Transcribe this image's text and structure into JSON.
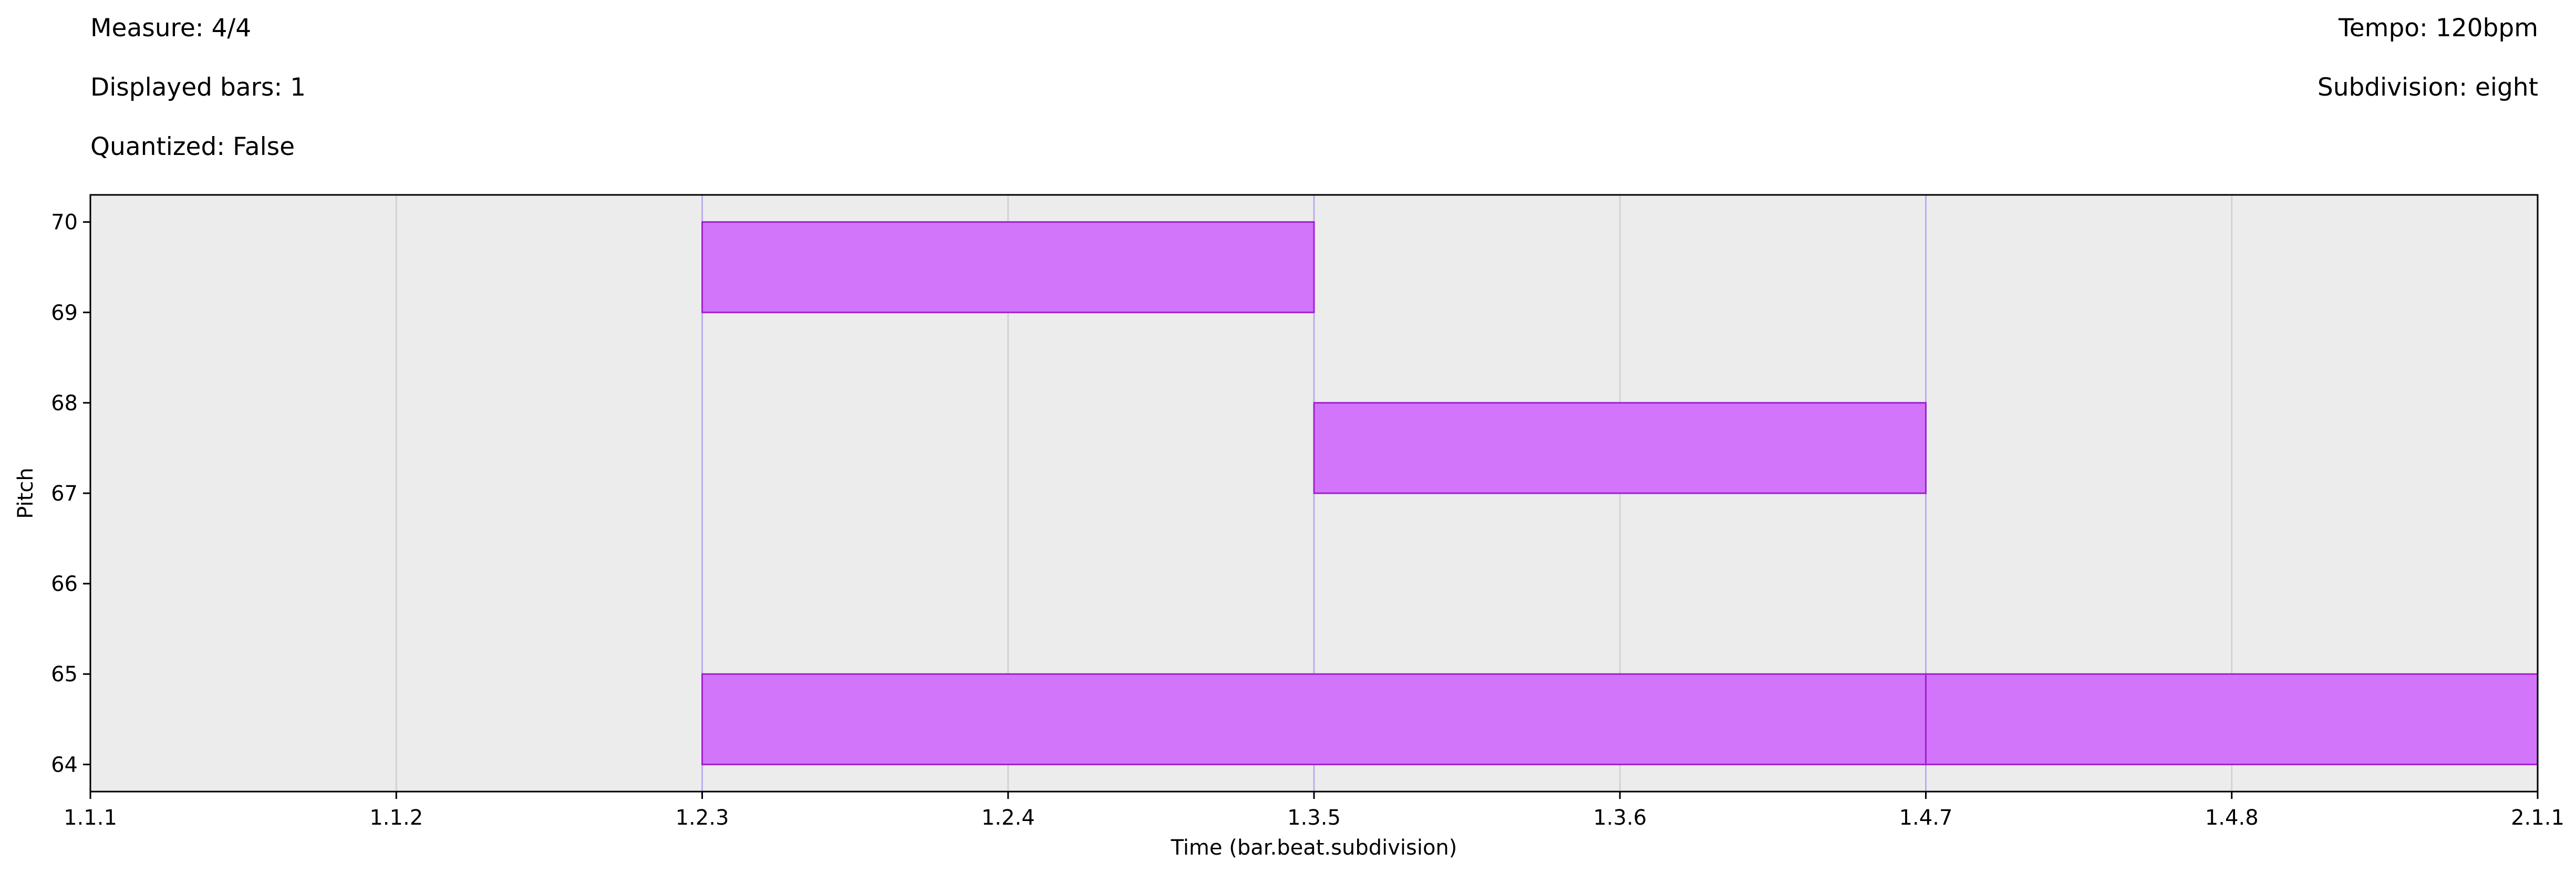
{
  "header": {
    "measure": "Measure: 4/4",
    "displayed_bars": "Displayed bars: 1",
    "quantized": "Quantized: False",
    "tempo": "Tempo: 120bpm",
    "subdivision": "Subdivision: eight"
  },
  "colors": {
    "plot_background": "#ececec",
    "note_fill": "#d275fb",
    "note_edge": "#a01fd4",
    "grid_line": "#d2d2d8",
    "beat_line": "#b9aef0",
    "axis": "#000000"
  },
  "chart_data": {
    "type": "piano-roll",
    "title": "",
    "xlabel": "Time (bar.beat.subdivision)",
    "ylabel": "Pitch",
    "x_unit": "eighth-note steps from 1.1.1",
    "xlim": [
      0,
      8
    ],
    "ylim": [
      63.7,
      70.3
    ],
    "x_ticks": [
      {
        "value": 0,
        "label": "1.1.1"
      },
      {
        "value": 1,
        "label": "1.1.2"
      },
      {
        "value": 2,
        "label": "1.2.3"
      },
      {
        "value": 3,
        "label": "1.2.4"
      },
      {
        "value": 4,
        "label": "1.3.5"
      },
      {
        "value": 5,
        "label": "1.3.6"
      },
      {
        "value": 6,
        "label": "1.4.7"
      },
      {
        "value": 7,
        "label": "1.4.8"
      },
      {
        "value": 8,
        "label": "2.1.1"
      }
    ],
    "beat_lines": [
      2,
      4,
      6
    ],
    "y_ticks": [
      64,
      65,
      66,
      67,
      68,
      69,
      70
    ],
    "grid": true,
    "notes": [
      {
        "pitch": 64,
        "start": 2,
        "end": 6
      },
      {
        "pitch": 64,
        "start": 6,
        "end": 8
      },
      {
        "pitch": 67,
        "start": 4,
        "end": 6
      },
      {
        "pitch": 69,
        "start": 2,
        "end": 4
      }
    ]
  }
}
